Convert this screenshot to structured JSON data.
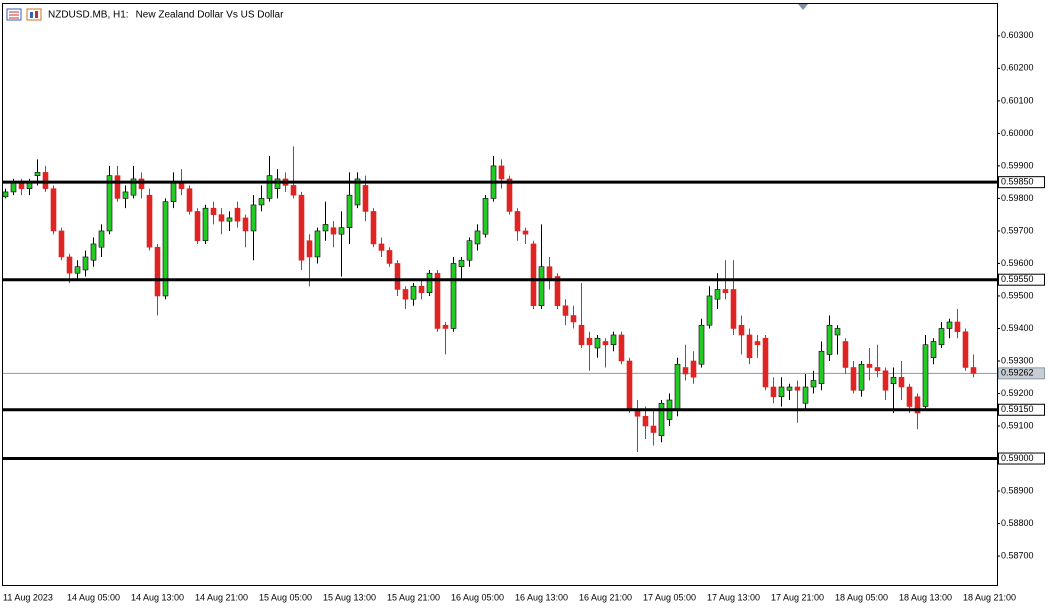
{
  "chart_data": {
    "type": "candlestick",
    "symbol": "NZDUSD.MB, H1:",
    "title": "New Zealand Dollar Vs US Dollar",
    "categories": [
      "11 Aug 2023",
      null,
      null,
      null,
      null,
      null,
      null,
      null,
      "14 Aug 05:00",
      null,
      null,
      null,
      null,
      null,
      null,
      null,
      "14 Aug 13:00",
      null,
      null,
      null,
      null,
      null,
      null,
      null,
      "14 Aug 21:00",
      null,
      null,
      null,
      null,
      null,
      null,
      null,
      "15 Aug 05:00",
      null,
      null,
      null,
      null,
      null,
      null,
      null,
      "15 Aug 13:00",
      null,
      null,
      null,
      null,
      null,
      null,
      null,
      "15 Aug 21:00",
      null,
      null,
      null,
      null,
      null,
      null,
      null,
      "16 Aug 05:00",
      null,
      null,
      null,
      null,
      null,
      null,
      null,
      "16 Aug 13:00",
      null,
      null,
      null,
      null,
      null,
      null,
      null,
      "16 Aug 21:00",
      null,
      null,
      null,
      null,
      null,
      null,
      null,
      "17 Aug 05:00",
      null,
      null,
      null,
      null,
      null,
      null,
      null,
      "17 Aug 13:00",
      null,
      null,
      null,
      null,
      null,
      null,
      null,
      "17 Aug 21:00",
      null,
      null,
      null,
      null,
      null,
      null,
      null,
      "18 Aug 05:00",
      null,
      null,
      null,
      null,
      null,
      null,
      null,
      "18 Aug 13:00",
      null,
      null,
      null,
      null,
      null,
      null,
      null,
      "18 Aug 21:00",
      null
    ],
    "open": [
      0.59805,
      0.5982,
      0.5985,
      0.5983,
      0.5987,
      0.5988,
      0.5983,
      0.597,
      0.5962,
      0.5957,
      0.5958,
      0.5961,
      0.5965,
      0.597,
      0.5987,
      0.598,
      0.5981,
      0.5986,
      0.5981,
      0.5965,
      0.595,
      0.5979,
      0.5985,
      0.5983,
      0.5976,
      0.5967,
      0.5977,
      0.5975,
      0.5973,
      0.5977,
      0.5974,
      0.597,
      0.5978,
      0.598,
      0.5983,
      0.5986,
      0.5984,
      0.5981,
      0.5967,
      0.5962,
      0.597,
      0.5971,
      0.5969,
      0.5971,
      0.5978,
      0.5984,
      0.5976,
      0.5966,
      0.5964,
      0.596,
      0.5952,
      0.5949,
      0.5953,
      0.5951,
      0.5957,
      0.5941,
      0.594,
      0.5959,
      0.5961,
      0.5966,
      0.5969,
      0.598,
      0.599,
      0.5986,
      0.5976,
      0.597,
      0.5966,
      0.5947,
      0.5959,
      0.5956,
      0.5947,
      0.5944,
      0.5941,
      0.5937,
      0.5934,
      0.5936,
      0.5935,
      0.5938,
      0.593,
      0.5915,
      0.5913,
      0.591,
      0.5907,
      0.5912,
      0.5915,
      0.5928,
      0.593,
      0.5929,
      0.5941,
      0.5949,
      0.5952,
      0.5952,
      0.5941,
      0.5938,
      0.5936,
      0.5937,
      0.5922,
      0.5919,
      0.5921,
      0.5922,
      0.5917,
      0.5922,
      0.5923,
      0.5932,
      0.5938,
      0.5936,
      0.5928,
      0.5921,
      0.5929,
      0.5928,
      0.5927,
      0.5923,
      0.5925,
      0.5922,
      0.5919,
      0.5916,
      0.5931,
      0.5935,
      0.594,
      0.5942,
      0.5939,
      0.5928
    ],
    "high": [
      0.5983,
      0.5986,
      0.5986,
      0.5986,
      0.5992,
      0.599,
      0.5984,
      0.5971,
      0.5963,
      0.5961,
      0.5964,
      0.5968,
      0.5972,
      0.599,
      0.599,
      0.5984,
      0.599,
      0.5988,
      0.5983,
      0.5966,
      0.598,
      0.5988,
      0.5989,
      0.5984,
      0.5977,
      0.5978,
      0.5979,
      0.5977,
      0.5976,
      0.5979,
      0.5975,
      0.5981,
      0.5984,
      0.5993,
      0.5989,
      0.5988,
      0.5996,
      0.5982,
      0.5969,
      0.5971,
      0.5979,
      0.5973,
      0.5976,
      0.5988,
      0.5988,
      0.5987,
      0.5977,
      0.5968,
      0.5965,
      0.5961,
      0.5953,
      0.5954,
      0.5955,
      0.5958,
      0.5958,
      0.5942,
      0.5962,
      0.5962,
      0.5968,
      0.5972,
      0.5981,
      0.5993,
      0.5992,
      0.5987,
      0.5977,
      0.5971,
      0.5967,
      0.5972,
      0.5962,
      0.5957,
      0.5949,
      0.5947,
      0.5954,
      0.5939,
      0.5938,
      0.5937,
      0.5939,
      0.5939,
      0.5931,
      0.5918,
      0.5916,
      0.5915,
      0.5918,
      0.592,
      0.5931,
      0.5935,
      0.5933,
      0.5943,
      0.5953,
      0.5957,
      0.5961,
      0.5961,
      0.5944,
      0.594,
      0.5938,
      0.5938,
      0.5925,
      0.5925,
      0.5923,
      0.5924,
      0.5926,
      0.5927,
      0.5936,
      0.5944,
      0.5941,
      0.5937,
      0.593,
      0.593,
      0.5934,
      0.5935,
      0.5928,
      0.5928,
      0.593,
      0.5923,
      0.592,
      0.5938,
      0.5937,
      0.5942,
      0.5943,
      0.5946,
      0.594,
      0.5932
    ],
    "low": [
      0.598,
      0.5981,
      0.5981,
      0.5981,
      0.5984,
      0.5982,
      0.5969,
      0.5961,
      0.5954,
      0.5955,
      0.5956,
      0.5959,
      0.5962,
      0.5969,
      0.5979,
      0.5977,
      0.598,
      0.598,
      0.5964,
      0.5944,
      0.5949,
      0.5977,
      0.5981,
      0.5975,
      0.5966,
      0.5966,
      0.5972,
      0.5969,
      0.597,
      0.5971,
      0.5965,
      0.5961,
      0.5976,
      0.5979,
      0.598,
      0.5982,
      0.598,
      0.5958,
      0.5953,
      0.596,
      0.5967,
      0.5965,
      0.5956,
      0.5966,
      0.5977,
      0.5973,
      0.5965,
      0.5962,
      0.5959,
      0.595,
      0.5946,
      0.5947,
      0.5949,
      0.595,
      0.5939,
      0.5932,
      0.5939,
      0.5955,
      0.5959,
      0.5964,
      0.5968,
      0.5979,
      0.5983,
      0.5975,
      0.5967,
      0.5966,
      0.5946,
      0.5946,
      0.5952,
      0.5946,
      0.5941,
      0.594,
      0.5934,
      0.5927,
      0.5931,
      0.5928,
      0.5933,
      0.5929,
      0.5914,
      0.5902,
      0.5906,
      0.5904,
      0.5905,
      0.591,
      0.5913,
      0.5924,
      0.5923,
      0.5928,
      0.594,
      0.5946,
      0.5949,
      0.5938,
      0.5932,
      0.5929,
      0.5931,
      0.5921,
      0.5917,
      0.5916,
      0.5918,
      0.5911,
      0.5915,
      0.592,
      0.5921,
      0.593,
      0.5932,
      0.5926,
      0.592,
      0.5919,
      0.5924,
      0.5925,
      0.5918,
      0.5914,
      0.5918,
      0.5914,
      0.5909,
      0.5915,
      0.5929,
      0.5934,
      0.5937,
      0.5937,
      0.5927,
      0.5925
    ],
    "close": [
      0.5982,
      0.5985,
      0.5983,
      0.5985,
      0.5988,
      0.5983,
      0.597,
      0.5962,
      0.5957,
      0.5959,
      0.5962,
      0.5966,
      0.597,
      0.5987,
      0.598,
      0.5982,
      0.5986,
      0.5983,
      0.5965,
      0.595,
      0.5979,
      0.5985,
      0.5983,
      0.5976,
      0.5967,
      0.5977,
      0.5975,
      0.5973,
      0.5974,
      0.5973,
      0.597,
      0.5978,
      0.598,
      0.5987,
      0.5986,
      0.5984,
      0.5981,
      0.5961,
      0.5962,
      0.597,
      0.5972,
      0.5969,
      0.5971,
      0.5981,
      0.5986,
      0.5976,
      0.5966,
      0.5964,
      0.596,
      0.5952,
      0.5949,
      0.5953,
      0.5951,
      0.5957,
      0.594,
      0.594,
      0.596,
      0.5961,
      0.5967,
      0.597,
      0.598,
      0.599,
      0.5986,
      0.5976,
      0.597,
      0.5969,
      0.5947,
      0.5959,
      0.5955,
      0.5947,
      0.5944,
      0.5942,
      0.5935,
      0.5935,
      0.5937,
      0.5935,
      0.5938,
      0.593,
      0.5915,
      0.5913,
      0.591,
      0.5908,
      0.5917,
      0.5918,
      0.5929,
      0.5926,
      0.5925,
      0.5941,
      0.595,
      0.5952,
      0.5951,
      0.594,
      0.5938,
      0.5931,
      0.5935,
      0.5922,
      0.5919,
      0.5922,
      0.5922,
      0.5921,
      0.5922,
      0.5924,
      0.5933,
      0.5941,
      0.594,
      0.5928,
      0.5921,
      0.5929,
      0.5928,
      0.5927,
      0.5921,
      0.5925,
      0.5922,
      0.5916,
      0.5914,
      0.5935,
      0.5936,
      0.594,
      0.5942,
      0.5939,
      0.5928,
      0.59262
    ],
    "up_color": "#22cc22",
    "down_color": "#e02424",
    "ylim": [
      0.58611,
      0.60398
    ],
    "yticks": [
      {
        "value": 0.603,
        "label": "0.60300"
      },
      {
        "value": 0.602,
        "label": "0.60200"
      },
      {
        "value": 0.601,
        "label": "0.60100"
      },
      {
        "value": 0.6,
        "label": "0.60000"
      },
      {
        "value": 0.599,
        "label": "0.59900"
      },
      {
        "value": 0.598,
        "label": "0.59800"
      },
      {
        "value": 0.597,
        "label": "0.59700"
      },
      {
        "value": 0.596,
        "label": "0.59600"
      },
      {
        "value": 0.595,
        "label": "0.59500"
      },
      {
        "value": 0.594,
        "label": "0.59400"
      },
      {
        "value": 0.593,
        "label": "0.59300"
      },
      {
        "value": 0.592,
        "label": "0.59200"
      },
      {
        "value": 0.591,
        "label": "0.59100"
      },
      {
        "value": 0.589,
        "label": "0.58900"
      },
      {
        "value": 0.588,
        "label": "0.58800"
      },
      {
        "value": 0.587,
        "label": "0.58700"
      }
    ],
    "levels": [
      {
        "value": 0.5985,
        "label": "0.59850"
      },
      {
        "value": 0.5955,
        "label": "0.59550"
      },
      {
        "value": 0.5915,
        "label": "0.59150"
      },
      {
        "value": 0.59,
        "label": "0.59000"
      }
    ],
    "last_price": {
      "value": 0.59262,
      "label": "0.59262"
    },
    "grid": false
  }
}
